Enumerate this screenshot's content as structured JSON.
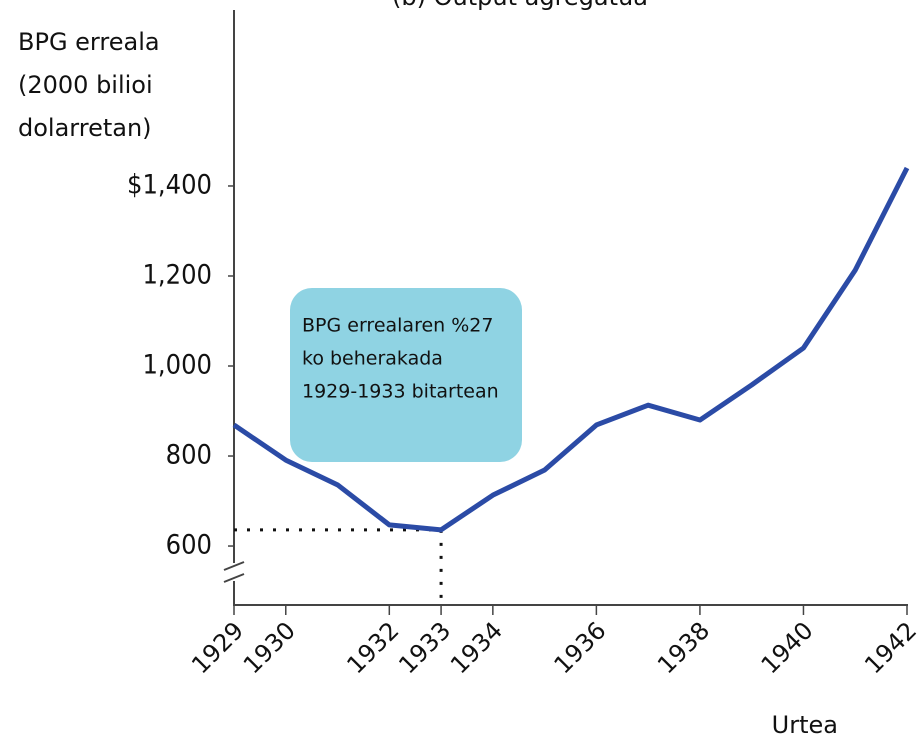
{
  "chart_data": {
    "type": "line",
    "title": "(b) Output agregatua",
    "y_label": [
      "BPG erreala",
      "(2000 bilioi",
      "dolarretan)"
    ],
    "x_label": "Urtea",
    "annotation": [
      "BPG errealaren %27",
      "ko beherakada",
      "1929-1933 bitartean"
    ],
    "x": [
      1929,
      1930,
      1931,
      1932,
      1933,
      1934,
      1935,
      1936,
      1937,
      1938,
      1939,
      1940,
      1941,
      1942
    ],
    "series": [
      {
        "color": "#2b4ba6",
        "values": [
          869,
          791,
          736,
          647,
          636,
          713,
          769,
          869,
          913,
          880,
          958,
          1040,
          1213,
          1440
        ]
      }
    ],
    "xlim": [
      1929,
      1942
    ],
    "xticks": [
      1929,
      1930,
      1932,
      1933,
      1934,
      1936,
      1938,
      1940,
      1942
    ],
    "ylim": [
      469,
      1791
    ],
    "yticks": [
      {
        "value": 1400,
        "label": "$1,400"
      },
      {
        "value": 1200,
        "label": "1,200"
      },
      {
        "value": 1000,
        "label": "1,000"
      },
      800,
      600
    ]
  }
}
